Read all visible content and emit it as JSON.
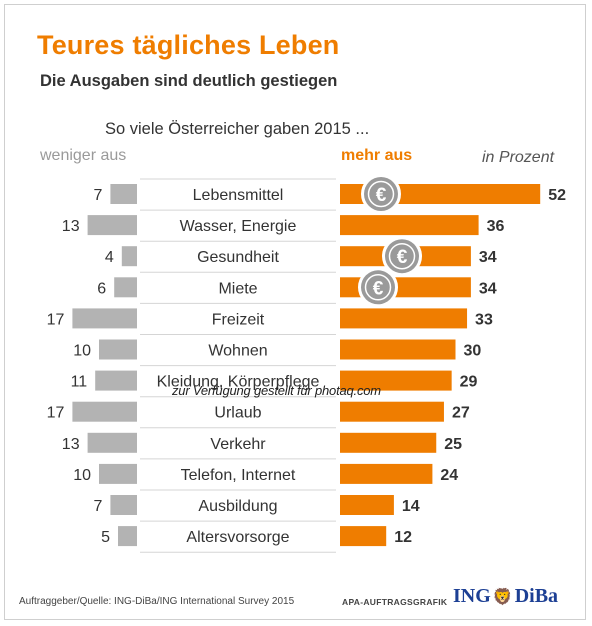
{
  "title": "Teures tägliches Leben",
  "subtitle": "Die Ausgaben sind deutlich gestiegen",
  "question": "So viele Österreicher gaben 2015 ...",
  "legend": {
    "less": "weniger aus",
    "more": "mehr aus",
    "unit": "in Prozent"
  },
  "footer": {
    "source": "Auftraggeber/Quelle: ING-DiBa/ING International Survey 2015",
    "apa": "APA-AUFTRAGSGRAFIK"
  },
  "logo": {
    "left": "ING",
    "right": "DiBa"
  },
  "watermark": "zur Verfügung gestellt für photaq.com",
  "colors": {
    "more": "#ef7d00",
    "less": "#b3b3b3",
    "coin": "#9a9a9a"
  },
  "chart_data": {
    "type": "bar",
    "categories": [
      "Lebensmittel",
      "Wasser, Energie",
      "Gesundheit",
      "Miete",
      "Freizeit",
      "Wohnen",
      "Kleidung, Körperpflege",
      "Urlaub",
      "Verkehr",
      "Telefon, Internet",
      "Ausbildung",
      "Altersvorsorge"
    ],
    "series": [
      {
        "name": "weniger aus",
        "values": [
          7,
          13,
          4,
          6,
          17,
          10,
          11,
          17,
          13,
          10,
          7,
          5
        ]
      },
      {
        "name": "mehr aus",
        "values": [
          52,
          36,
          34,
          34,
          33,
          30,
          29,
          27,
          25,
          24,
          14,
          12
        ]
      }
    ],
    "unit": "in Prozent",
    "coin_rows": [
      0,
      2,
      3
    ],
    "coin_symbol": "€"
  }
}
